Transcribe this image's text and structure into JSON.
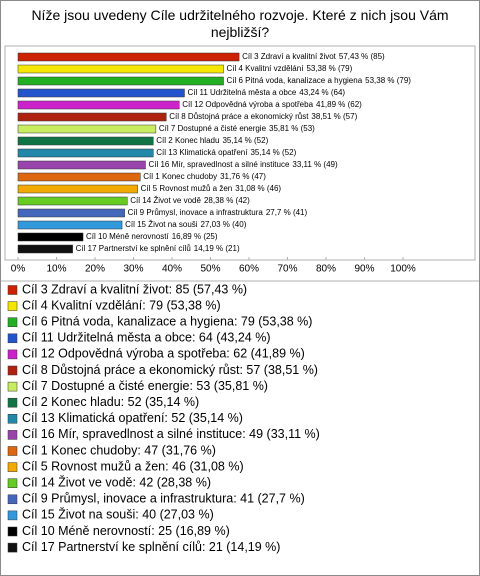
{
  "chart_data": {
    "type": "hbar",
    "title": "Níže jsou uvedeny Cíle udržitelného rozvoje. Které z nich jsou Vám nejbližší?",
    "categories": [
      "Cíl 3 Zdraví a kvalitní život",
      "Cíl 4 Kvalitní vzdělání",
      "Cíl 6 Pitná voda, kanalizace a hygiena",
      "Cíl 11 Udržitelná města a obce",
      "Cíl 12 Odpovědná výroba a spotřeba",
      "Cíl 8 Důstojná práce a ekonomický růst",
      "Cíl 7 Dostupné a čisté energie",
      "Cíl 2 Konec hladu",
      "Cíl 13 Klimatická opatření",
      "Cíl 16 Mír, spravedlnost a silné instituce",
      "Cíl 1 Konec chudoby",
      "Cíl 5 Rovnost mužů a žen",
      "Cíl 14 Život ve vodě",
      "Cíl 9 Průmysl, inovace a infrastruktura",
      "Cíl 15 Život na souši",
      "Cíl 10 Méně nerovností",
      "Cíl 17 Partnerství ke splnění cílů"
    ],
    "values": [
      57.43,
      53.38,
      53.38,
      43.24,
      41.89,
      38.51,
      35.81,
      35.14,
      35.14,
      33.11,
      31.76,
      31.08,
      28.38,
      27.7,
      27.03,
      16.89,
      14.19
    ],
    "value_labels": [
      "57,43 % (85)",
      "53,38 % (79)",
      "53,38 % (79)",
      "43,24 % (64)",
      "41,89 % (62)",
      "38,51 % (57)",
      "35,81 % (53)",
      "35,14 % (52)",
      "35,14 % (52)",
      "33,11 % (49)",
      "31,76 % (47)",
      "31,08 % (46)",
      "28,38 % (42)",
      "27,7 % (41)",
      "27,03 % (40)",
      "16,89 % (25)",
      "14,19 % (21)"
    ],
    "colors": [
      "#cc2200",
      "#f5e600",
      "#22b022",
      "#2255cc",
      "#cc22cc",
      "#b02210",
      "#c8ec60",
      "#107444",
      "#2288aa",
      "#9944aa",
      "#dd6611",
      "#f2a900",
      "#66cc22",
      "#4466bb",
      "#3399dd",
      "#000000",
      "#111111"
    ],
    "legend_labels": [
      "Cíl 3 Zdraví a kvalitní život: 85 (57,43 %)",
      "Cíl 4 Kvalitní vzdělání: 79 (53,38 %)",
      "Cíl 6 Pitná voda, kanalizace a hygiena: 79 (53,38 %)",
      "Cíl 11 Udržitelná města a obce: 64 (43,24 %)",
      "Cíl 12 Odpovědná výroba a spotřeba: 62 (41,89 %)",
      "Cíl 8 Důstojná práce a ekonomický růst: 57 (38,51 %)",
      "Cíl 7 Dostupné a čisté energie: 53 (35,81 %)",
      "Cíl 2 Konec hladu: 52 (35,14 %)",
      "Cíl 13 Klimatická opatření: 52 (35,14 %)",
      "Cíl 16 Mír, spravedlnost a silné instituce: 49 (33,11 %)",
      "Cíl 1 Konec chudoby: 47 (31,76 %)",
      "Cíl 5 Rovnost mužů a žen: 46 (31,08 %)",
      "Cíl 14 Život ve vodě: 42 (28,38 %)",
      "Cíl 9 Průmysl, inovace a infrastruktura: 41 (27,7 %)",
      "Cíl 15 Život na souši: 40 (27,03 %)",
      "Cíl 10 Méně nerovností: 25 (16,89 %)",
      "Cíl 17 Partnerství ke splnění cílů: 21 (14,19 %)"
    ],
    "xlim": [
      0,
      100
    ],
    "xticks": [
      {
        "value": 0,
        "label": "0%"
      },
      {
        "value": 10,
        "label": "10%"
      },
      {
        "value": 20,
        "label": "20%"
      },
      {
        "value": 30,
        "label": "30%"
      },
      {
        "value": 40,
        "label": "40%"
      },
      {
        "value": 50,
        "label": "50%"
      },
      {
        "value": 60,
        "label": "60%"
      },
      {
        "value": 70,
        "label": "70%"
      },
      {
        "value": 80,
        "label": "80%"
      },
      {
        "value": 90,
        "label": "90%"
      },
      {
        "value": 100,
        "label": "100%"
      }
    ],
    "grid": false
  }
}
